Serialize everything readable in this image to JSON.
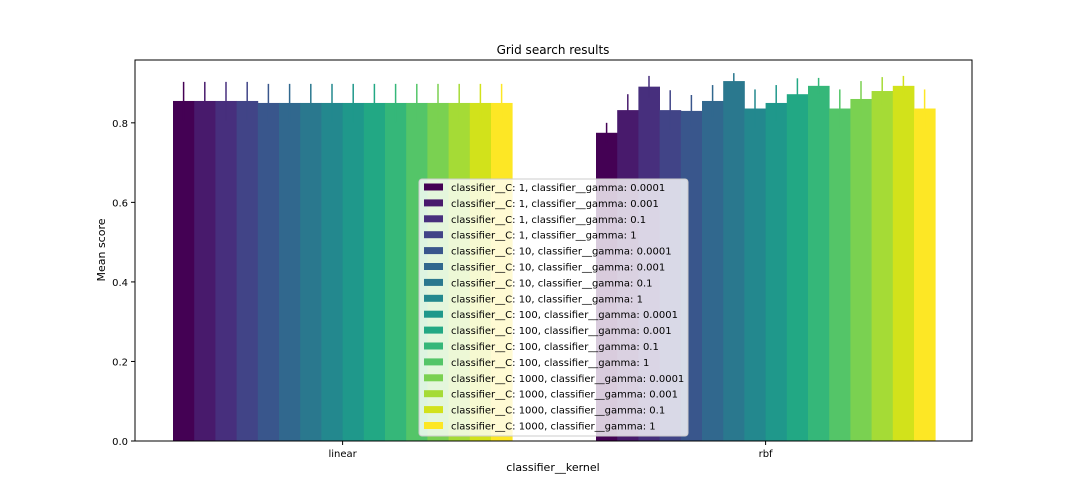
{
  "chart_data": {
    "type": "bar",
    "title": "Grid search results",
    "xlabel": "classifier__kernel",
    "ylabel": "Mean score",
    "categories": [
      "linear",
      "rbf"
    ],
    "yticks": [
      "0.0",
      "0.2",
      "0.4",
      "0.6",
      "0.8"
    ],
    "ylim": [
      0,
      0.958
    ],
    "grid": false,
    "legend_position": "center",
    "series": [
      {
        "name": "classifier__C: 1, classifier__gamma: 0.0001",
        "color": "#440154",
        "values": [
          0.855,
          0.775
        ],
        "errors": [
          0.048,
          0.025
        ]
      },
      {
        "name": "classifier__C: 1, classifier__gamma: 0.001",
        "color": "#481a6c",
        "values": [
          0.855,
          0.832
        ],
        "errors": [
          0.048,
          0.04
        ]
      },
      {
        "name": "classifier__C: 1, classifier__gamma: 0.1",
        "color": "#472f7d",
        "values": [
          0.855,
          0.891
        ],
        "errors": [
          0.048,
          0.027
        ]
      },
      {
        "name": "classifier__C: 1, classifier__gamma: 1",
        "color": "#414487",
        "values": [
          0.855,
          0.832
        ],
        "errors": [
          0.048,
          0.05
        ]
      },
      {
        "name": "classifier__C: 10, classifier__gamma: 0.0001",
        "color": "#39568c",
        "values": [
          0.85,
          0.83
        ],
        "errors": [
          0.048,
          0.04
        ]
      },
      {
        "name": "classifier__C: 10, classifier__gamma: 0.001",
        "color": "#31688e",
        "values": [
          0.85,
          0.855
        ],
        "errors": [
          0.048,
          0.04
        ]
      },
      {
        "name": "classifier__C: 10, classifier__gamma: 0.1",
        "color": "#2a788e",
        "values": [
          0.85,
          0.905
        ],
        "errors": [
          0.048,
          0.02
        ]
      },
      {
        "name": "classifier__C: 10, classifier__gamma: 1",
        "color": "#23888e",
        "values": [
          0.85,
          0.836
        ],
        "errors": [
          0.048,
          0.048
        ]
      },
      {
        "name": "classifier__C: 100, classifier__gamma: 0.0001",
        "color": "#1f988b",
        "values": [
          0.85,
          0.85
        ],
        "errors": [
          0.048,
          0.045
        ]
      },
      {
        "name": "classifier__C: 100, classifier__gamma: 0.001",
        "color": "#22a884",
        "values": [
          0.85,
          0.872
        ],
        "errors": [
          0.048,
          0.04
        ]
      },
      {
        "name": "classifier__C: 100, classifier__gamma: 0.1",
        "color": "#35b779",
        "values": [
          0.85,
          0.893
        ],
        "errors": [
          0.048,
          0.02
        ]
      },
      {
        "name": "classifier__C: 100, classifier__gamma: 1",
        "color": "#54c568",
        "values": [
          0.85,
          0.836
        ],
        "errors": [
          0.048,
          0.048
        ]
      },
      {
        "name": "classifier__C: 1000, classifier__gamma: 0.0001",
        "color": "#7ad151",
        "values": [
          0.85,
          0.86
        ],
        "errors": [
          0.048,
          0.045
        ]
      },
      {
        "name": "classifier__C: 1000, classifier__gamma: 0.001",
        "color": "#a5db36",
        "values": [
          0.85,
          0.88
        ],
        "errors": [
          0.048,
          0.035
        ]
      },
      {
        "name": "classifier__C: 1000, classifier__gamma: 0.1",
        "color": "#d2e21b",
        "values": [
          0.85,
          0.893
        ],
        "errors": [
          0.048,
          0.025
        ]
      },
      {
        "name": "classifier__C: 1000, classifier__gamma: 1",
        "color": "#fde725",
        "values": [
          0.85,
          0.836
        ],
        "errors": [
          0.048,
          0.048
        ]
      }
    ]
  }
}
